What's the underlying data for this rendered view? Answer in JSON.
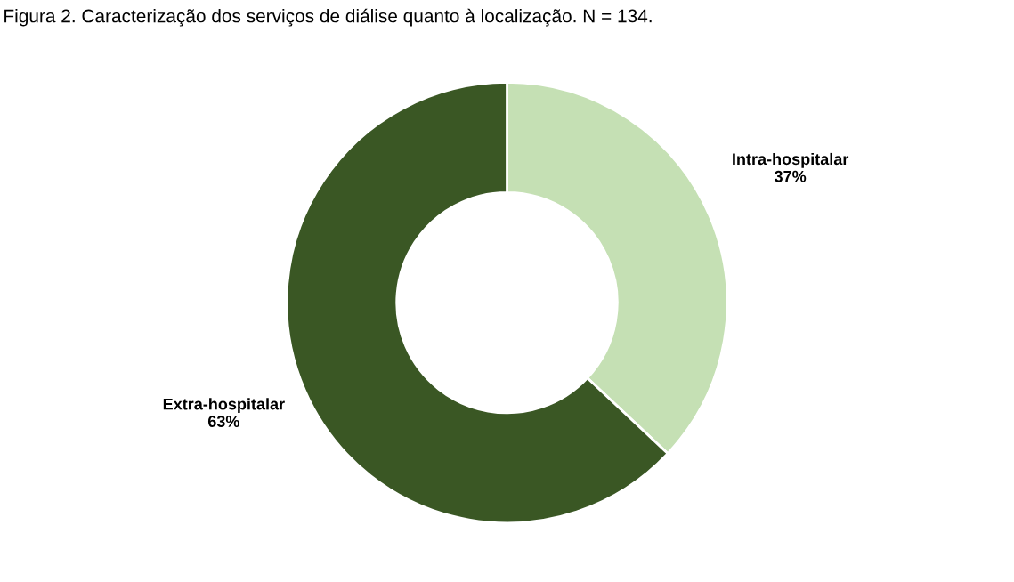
{
  "chart_data": {
    "type": "donut",
    "title": "Figura 2. Caracterização dos serviços de diálise quanto à localização. N = 134.",
    "categories": [
      "Intra-hospitalar",
      "Extra-hospitalar"
    ],
    "values": [
      37,
      63
    ],
    "value_labels": [
      "37%",
      "63%"
    ],
    "colors": [
      "#c5e0b4",
      "#3a5724"
    ],
    "legend": false
  }
}
